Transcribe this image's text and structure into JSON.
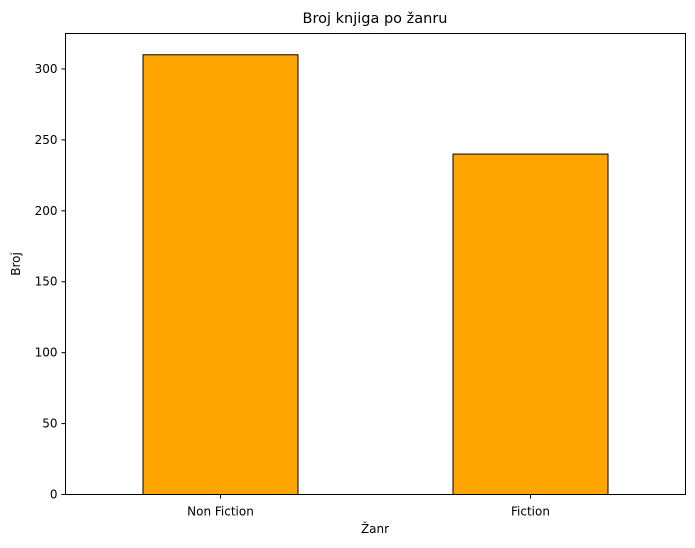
{
  "chart_data": {
    "type": "bar",
    "title": "Broj knjiga po žanru",
    "xlabel": "Žanr",
    "ylabel": "Broj",
    "categories": [
      "Non Fiction",
      "Fiction"
    ],
    "values": [
      310,
      240
    ],
    "ylim": [
      0,
      325
    ],
    "yticks": [
      0,
      50,
      100,
      150,
      200,
      250,
      300
    ],
    "bar_color": "#FFA500",
    "edge_color": "#000000",
    "grid": false,
    "legend": "none"
  }
}
